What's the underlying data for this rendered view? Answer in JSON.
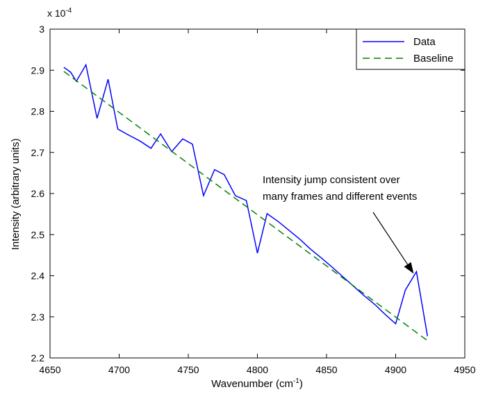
{
  "chart_data": {
    "type": "line",
    "title": "",
    "xlabel": "Wavenumber (cm",
    "xlabel_sup": "-1",
    "xlabel_close": ")",
    "ylabel": "Intensity (arbitrary units)",
    "y_multiplier_base": "x 10",
    "y_multiplier_exp": "-4",
    "xlim": [
      4650,
      4950
    ],
    "ylim": [
      2.2,
      3.0
    ],
    "x_ticks": [
      4650,
      4700,
      4750,
      4800,
      4850,
      4900,
      4950
    ],
    "y_ticks": [
      2.2,
      2.3,
      2.4,
      2.5,
      2.6,
      2.7,
      2.8,
      2.9,
      3.0
    ],
    "x_tick_labels": [
      "4650",
      "4700",
      "4750",
      "4800",
      "4850",
      "4900",
      "4950"
    ],
    "y_tick_labels": [
      "2.2",
      "2.3",
      "2.4",
      "2.5",
      "2.6",
      "2.7",
      "2.8",
      "2.9",
      "3"
    ],
    "grid": false,
    "legend_position": "top-right",
    "series": [
      {
        "name": "Data",
        "color": "#0000ff",
        "style": "solid",
        "x": [
          4660,
          4665,
          4669,
          4676,
          4684,
          4692,
          4699,
          4707,
          4715,
          4723,
          4730,
          4738,
          4746,
          4753,
          4761,
          4769,
          4776,
          4784,
          4792,
          4800,
          4807,
          4815,
          4823,
          4831,
          4838,
          4846,
          4854,
          4861,
          4869,
          4877,
          4885,
          4892,
          4900,
          4907,
          4915,
          4923
        ],
        "y": [
          2.907,
          2.895,
          2.873,
          2.913,
          2.783,
          2.878,
          2.757,
          2.742,
          2.728,
          2.71,
          2.745,
          2.702,
          2.733,
          2.72,
          2.595,
          2.658,
          2.646,
          2.595,
          2.583,
          2.455,
          2.551,
          2.532,
          2.51,
          2.488,
          2.466,
          2.444,
          2.421,
          2.4,
          2.376,
          2.352,
          2.33,
          2.307,
          2.283,
          2.365,
          2.41,
          2.253
        ]
      },
      {
        "name": "Baseline",
        "color": "#008000",
        "style": "dashed",
        "x": [
          4660,
          4923
        ],
        "y": [
          2.897,
          2.242
        ]
      }
    ],
    "annotation": {
      "lines": [
        "Intensity jump consistent over",
        "many frames and different events"
      ],
      "arrow_to_x": 4913,
      "arrow_to_y": 2.405
    }
  }
}
